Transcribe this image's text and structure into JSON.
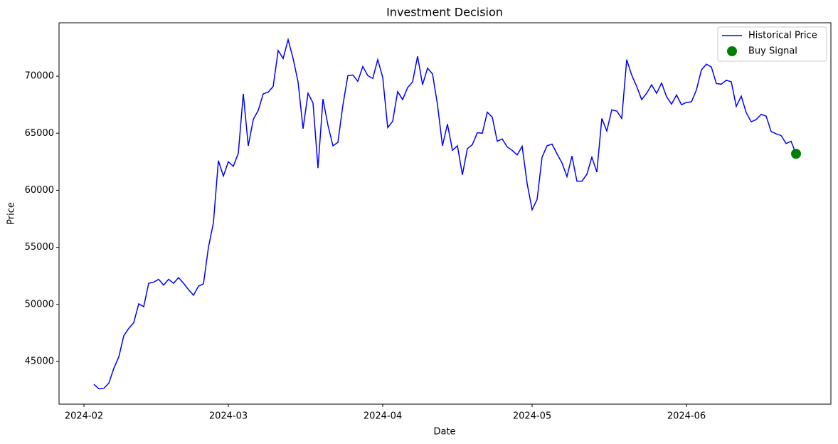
{
  "chart_data": {
    "type": "line",
    "title": "Investment Decision",
    "x_label": "Date",
    "y_label": "Price",
    "x": [
      "2024-02-03",
      "2024-02-04",
      "2024-02-05",
      "2024-02-06",
      "2024-02-07",
      "2024-02-08",
      "2024-02-09",
      "2024-02-10",
      "2024-02-11",
      "2024-02-12",
      "2024-02-13",
      "2024-02-14",
      "2024-02-15",
      "2024-02-16",
      "2024-02-17",
      "2024-02-18",
      "2024-02-19",
      "2024-02-20",
      "2024-02-21",
      "2024-02-22",
      "2024-02-23",
      "2024-02-24",
      "2024-02-25",
      "2024-02-26",
      "2024-02-27",
      "2024-02-28",
      "2024-02-29",
      "2024-03-01",
      "2024-03-02",
      "2024-03-03",
      "2024-03-04",
      "2024-03-05",
      "2024-03-06",
      "2024-03-07",
      "2024-03-08",
      "2024-03-09",
      "2024-03-10",
      "2024-03-11",
      "2024-03-12",
      "2024-03-13",
      "2024-03-14",
      "2024-03-15",
      "2024-03-16",
      "2024-03-17",
      "2024-03-18",
      "2024-03-19",
      "2024-03-20",
      "2024-03-21",
      "2024-03-22",
      "2024-03-23",
      "2024-03-24",
      "2024-03-25",
      "2024-03-26",
      "2024-03-27",
      "2024-03-28",
      "2024-03-29",
      "2024-03-30",
      "2024-03-31",
      "2024-04-01",
      "2024-04-02",
      "2024-04-03",
      "2024-04-04",
      "2024-04-05",
      "2024-04-06",
      "2024-04-07",
      "2024-04-08",
      "2024-04-09",
      "2024-04-10",
      "2024-04-11",
      "2024-04-12",
      "2024-04-13",
      "2024-04-14",
      "2024-04-15",
      "2024-04-16",
      "2024-04-17",
      "2024-04-18",
      "2024-04-19",
      "2024-04-20",
      "2024-04-21",
      "2024-04-22",
      "2024-04-23",
      "2024-04-24",
      "2024-04-25",
      "2024-04-26",
      "2024-04-27",
      "2024-04-28",
      "2024-04-29",
      "2024-04-30",
      "2024-05-01",
      "2024-05-02",
      "2024-05-03",
      "2024-05-04",
      "2024-05-05",
      "2024-05-06",
      "2024-05-07",
      "2024-05-08",
      "2024-05-09",
      "2024-05-10",
      "2024-05-11",
      "2024-05-12",
      "2024-05-13",
      "2024-05-14",
      "2024-05-15",
      "2024-05-16",
      "2024-05-17",
      "2024-05-18",
      "2024-05-19",
      "2024-05-20",
      "2024-05-21",
      "2024-05-22",
      "2024-05-23",
      "2024-05-24",
      "2024-05-25",
      "2024-05-26",
      "2024-05-27",
      "2024-05-28",
      "2024-05-29",
      "2024-05-30",
      "2024-05-31",
      "2024-06-01",
      "2024-06-02",
      "2024-06-03",
      "2024-06-04",
      "2024-06-05",
      "2024-06-06",
      "2024-06-07",
      "2024-06-08",
      "2024-06-09",
      "2024-06-10",
      "2024-06-11",
      "2024-06-12",
      "2024-06-13",
      "2024-06-14",
      "2024-06-15",
      "2024-06-16",
      "2024-06-17",
      "2024-06-18",
      "2024-06-19",
      "2024-06-20",
      "2024-06-21",
      "2024-06-22",
      "2024-06-23"
    ],
    "series": [
      {
        "name": "Historical Price",
        "type": "line",
        "color": "#0000ff",
        "values": [
          43000,
          42600,
          42650,
          43100,
          44400,
          45400,
          47250,
          47900,
          48400,
          50050,
          49800,
          51850,
          51950,
          52200,
          51700,
          52200,
          51850,
          52350,
          51850,
          51300,
          50800,
          51600,
          51800,
          55000,
          57150,
          62600,
          61250,
          62500,
          62100,
          63250,
          68450,
          63900,
          66200,
          67000,
          68450,
          68600,
          69100,
          72250,
          71550,
          73200,
          71550,
          69500,
          65400,
          68500,
          67650,
          61950,
          68000,
          65700,
          63900,
          64200,
          67450,
          70050,
          70100,
          69550,
          70850,
          70050,
          69800,
          71450,
          69900,
          65500,
          66050,
          68650,
          67950,
          69000,
          69500,
          71750,
          69250,
          70700,
          70200,
          67500,
          63900,
          65800,
          63500,
          63900,
          61350,
          63650,
          64000,
          65050,
          65000,
          66850,
          66400,
          64300,
          64500,
          63800,
          63500,
          63100,
          63850,
          60600,
          58300,
          59200,
          62900,
          63900,
          64050,
          63200,
          62400,
          61200,
          63000,
          60800,
          60800,
          61400,
          62900,
          61600,
          66300,
          65200,
          67050,
          66950,
          66300,
          71450,
          70100,
          69100,
          67950,
          68500,
          69250,
          68500,
          69400,
          68200,
          67550,
          68350,
          67500,
          67700,
          67750,
          68800,
          70550,
          71050,
          70800,
          69350,
          69300,
          69650,
          69500,
          67350,
          68250,
          66800,
          66000,
          66200,
          66650,
          66500,
          65150,
          64950,
          64800,
          64100,
          64300,
          63200
        ]
      },
      {
        "name": "Buy Signal",
        "type": "scatter",
        "color": "#008000",
        "x": [
          "2024-06-23"
        ],
        "values": [
          63200
        ]
      }
    ],
    "xlim": [
      "2024-01-27",
      "2024-06-30"
    ],
    "xticks": [
      {
        "value": "2024-02-01",
        "label": "2024-02"
      },
      {
        "value": "2024-03-01",
        "label": "2024-03"
      },
      {
        "value": "2024-04-01",
        "label": "2024-04"
      },
      {
        "value": "2024-05-01",
        "label": "2024-05"
      },
      {
        "value": "2024-06-01",
        "label": "2024-06"
      }
    ],
    "ylim": [
      41260,
      74680
    ],
    "yticks": [
      45000,
      50000,
      55000,
      60000,
      65000,
      70000
    ],
    "grid": false,
    "legend": "upper right"
  }
}
